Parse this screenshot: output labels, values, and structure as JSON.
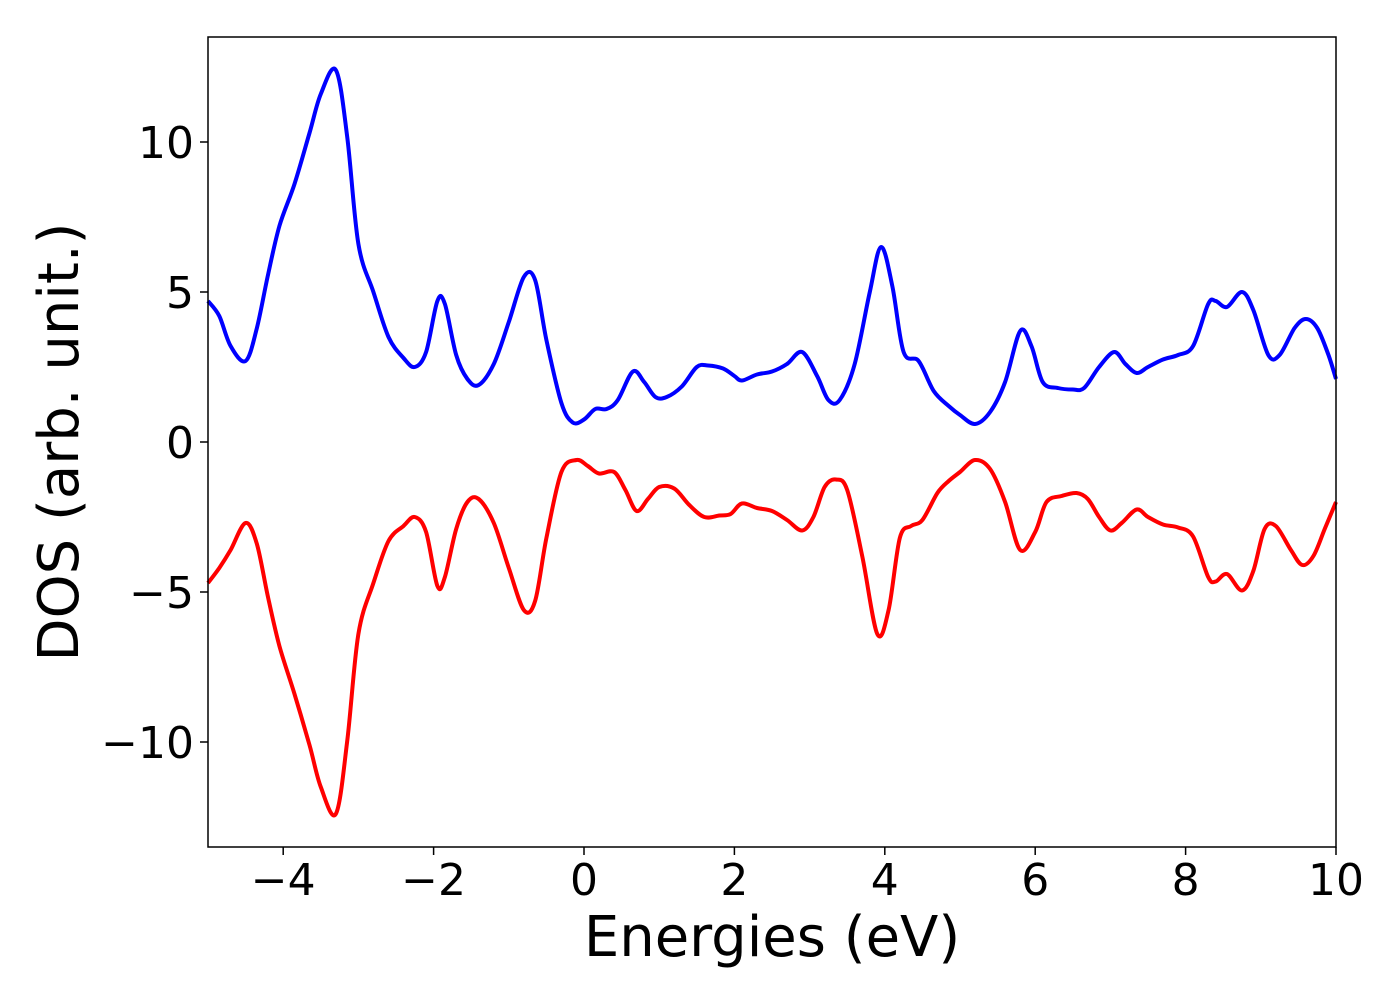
{
  "chart_data": {
    "type": "line",
    "title": "",
    "xlabel": "Energies (eV)",
    "ylabel": "DOS (arb. unit.)",
    "xlim": [
      -5,
      10
    ],
    "ylim": [
      -13.5,
      13.5
    ],
    "grid": false,
    "legend": "none",
    "x_ticks": [
      -4,
      -2,
      0,
      2,
      4,
      6,
      8,
      10
    ],
    "x_tick_labels": [
      "−4",
      "−2",
      "0",
      "2",
      "4",
      "6",
      "8",
      "10"
    ],
    "y_ticks": [
      -10,
      -5,
      0,
      5,
      10
    ],
    "y_tick_labels": [
      "−10",
      "−5",
      "0",
      "5",
      "10"
    ],
    "series": [
      {
        "color": "#0000ff",
        "points": [
          [
            -5.0,
            4.7
          ],
          [
            -4.85,
            4.2
          ],
          [
            -4.7,
            3.2
          ],
          [
            -4.5,
            2.7
          ],
          [
            -4.35,
            3.8
          ],
          [
            -4.2,
            5.6
          ],
          [
            -4.05,
            7.2
          ],
          [
            -3.85,
            8.6
          ],
          [
            -3.65,
            10.3
          ],
          [
            -3.5,
            11.6
          ],
          [
            -3.3,
            12.4
          ],
          [
            -3.15,
            10.2
          ],
          [
            -3.0,
            6.6
          ],
          [
            -2.8,
            5.0
          ],
          [
            -2.6,
            3.5
          ],
          [
            -2.4,
            2.8
          ],
          [
            -2.25,
            2.5
          ],
          [
            -2.1,
            3.0
          ],
          [
            -1.95,
            4.7
          ],
          [
            -1.85,
            4.6
          ],
          [
            -1.7,
            2.9
          ],
          [
            -1.55,
            2.1
          ],
          [
            -1.4,
            1.9
          ],
          [
            -1.2,
            2.6
          ],
          [
            -1.0,
            4.0
          ],
          [
            -0.8,
            5.5
          ],
          [
            -0.65,
            5.4
          ],
          [
            -0.5,
            3.4
          ],
          [
            -0.3,
            1.3
          ],
          [
            -0.15,
            0.65
          ],
          [
            0.0,
            0.75
          ],
          [
            0.15,
            1.1
          ],
          [
            0.3,
            1.1
          ],
          [
            0.45,
            1.4
          ],
          [
            0.65,
            2.35
          ],
          [
            0.8,
            2.0
          ],
          [
            0.95,
            1.5
          ],
          [
            1.1,
            1.5
          ],
          [
            1.3,
            1.85
          ],
          [
            1.5,
            2.5
          ],
          [
            1.65,
            2.55
          ],
          [
            1.85,
            2.45
          ],
          [
            2.0,
            2.2
          ],
          [
            2.1,
            2.05
          ],
          [
            2.3,
            2.25
          ],
          [
            2.5,
            2.35
          ],
          [
            2.7,
            2.6
          ],
          [
            2.9,
            3.0
          ],
          [
            3.1,
            2.2
          ],
          [
            3.25,
            1.4
          ],
          [
            3.4,
            1.4
          ],
          [
            3.6,
            2.6
          ],
          [
            3.8,
            5.0
          ],
          [
            3.95,
            6.5
          ],
          [
            4.1,
            5.2
          ],
          [
            4.25,
            3.0
          ],
          [
            4.45,
            2.7
          ],
          [
            4.65,
            1.7
          ],
          [
            4.85,
            1.2
          ],
          [
            5.0,
            0.9
          ],
          [
            5.2,
            0.6
          ],
          [
            5.4,
            1.0
          ],
          [
            5.6,
            2.0
          ],
          [
            5.8,
            3.7
          ],
          [
            5.95,
            3.2
          ],
          [
            6.1,
            2.0
          ],
          [
            6.3,
            1.8
          ],
          [
            6.5,
            1.75
          ],
          [
            6.65,
            1.8
          ],
          [
            6.85,
            2.5
          ],
          [
            7.05,
            3.0
          ],
          [
            7.2,
            2.6
          ],
          [
            7.35,
            2.3
          ],
          [
            7.5,
            2.5
          ],
          [
            7.7,
            2.75
          ],
          [
            7.9,
            2.9
          ],
          [
            8.1,
            3.2
          ],
          [
            8.3,
            4.6
          ],
          [
            8.4,
            4.7
          ],
          [
            8.55,
            4.5
          ],
          [
            8.75,
            5.0
          ],
          [
            8.9,
            4.4
          ],
          [
            9.1,
            2.9
          ],
          [
            9.25,
            2.9
          ],
          [
            9.45,
            3.8
          ],
          [
            9.6,
            4.1
          ],
          [
            9.75,
            3.8
          ],
          [
            9.9,
            2.9
          ],
          [
            10.0,
            2.1
          ]
        ]
      },
      {
        "color": "#ff0000",
        "points": [
          [
            -5.0,
            -4.7
          ],
          [
            -4.85,
            -4.2
          ],
          [
            -4.7,
            -3.6
          ],
          [
            -4.5,
            -2.7
          ],
          [
            -4.35,
            -3.4
          ],
          [
            -4.2,
            -5.2
          ],
          [
            -4.05,
            -6.8
          ],
          [
            -3.85,
            -8.4
          ],
          [
            -3.65,
            -10.1
          ],
          [
            -3.5,
            -11.5
          ],
          [
            -3.3,
            -12.4
          ],
          [
            -3.15,
            -10.0
          ],
          [
            -3.0,
            -6.4
          ],
          [
            -2.8,
            -4.7
          ],
          [
            -2.6,
            -3.3
          ],
          [
            -2.4,
            -2.8
          ],
          [
            -2.25,
            -2.5
          ],
          [
            -2.1,
            -3.0
          ],
          [
            -1.95,
            -4.8
          ],
          [
            -1.85,
            -4.5
          ],
          [
            -1.7,
            -2.9
          ],
          [
            -1.55,
            -2.0
          ],
          [
            -1.4,
            -1.9
          ],
          [
            -1.2,
            -2.7
          ],
          [
            -1.0,
            -4.2
          ],
          [
            -0.8,
            -5.6
          ],
          [
            -0.65,
            -5.3
          ],
          [
            -0.5,
            -3.2
          ],
          [
            -0.3,
            -1.0
          ],
          [
            -0.1,
            -0.6
          ],
          [
            0.05,
            -0.8
          ],
          [
            0.2,
            -1.05
          ],
          [
            0.4,
            -1.0
          ],
          [
            0.55,
            -1.6
          ],
          [
            0.7,
            -2.3
          ],
          [
            0.85,
            -1.9
          ],
          [
            1.0,
            -1.5
          ],
          [
            1.2,
            -1.55
          ],
          [
            1.4,
            -2.1
          ],
          [
            1.6,
            -2.5
          ],
          [
            1.8,
            -2.45
          ],
          [
            1.95,
            -2.4
          ],
          [
            2.1,
            -2.05
          ],
          [
            2.3,
            -2.2
          ],
          [
            2.5,
            -2.3
          ],
          [
            2.7,
            -2.6
          ],
          [
            2.9,
            -2.95
          ],
          [
            3.05,
            -2.5
          ],
          [
            3.2,
            -1.5
          ],
          [
            3.35,
            -1.25
          ],
          [
            3.5,
            -1.6
          ],
          [
            3.7,
            -3.8
          ],
          [
            3.9,
            -6.4
          ],
          [
            4.05,
            -5.6
          ],
          [
            4.2,
            -3.2
          ],
          [
            4.35,
            -2.8
          ],
          [
            4.5,
            -2.6
          ],
          [
            4.7,
            -1.7
          ],
          [
            4.85,
            -1.3
          ],
          [
            5.0,
            -1.0
          ],
          [
            5.2,
            -0.6
          ],
          [
            5.4,
            -0.9
          ],
          [
            5.6,
            -2.0
          ],
          [
            5.8,
            -3.6
          ],
          [
            6.0,
            -3.0
          ],
          [
            6.15,
            -2.0
          ],
          [
            6.35,
            -1.8
          ],
          [
            6.55,
            -1.7
          ],
          [
            6.7,
            -1.9
          ],
          [
            6.85,
            -2.5
          ],
          [
            7.0,
            -2.95
          ],
          [
            7.15,
            -2.7
          ],
          [
            7.35,
            -2.25
          ],
          [
            7.5,
            -2.5
          ],
          [
            7.7,
            -2.75
          ],
          [
            7.9,
            -2.85
          ],
          [
            8.1,
            -3.15
          ],
          [
            8.3,
            -4.5
          ],
          [
            8.4,
            -4.65
          ],
          [
            8.55,
            -4.4
          ],
          [
            8.75,
            -4.95
          ],
          [
            8.9,
            -4.3
          ],
          [
            9.05,
            -2.9
          ],
          [
            9.2,
            -2.8
          ],
          [
            9.4,
            -3.6
          ],
          [
            9.55,
            -4.1
          ],
          [
            9.7,
            -3.8
          ],
          [
            9.85,
            -2.9
          ],
          [
            10.0,
            -2.0
          ]
        ]
      }
    ]
  }
}
